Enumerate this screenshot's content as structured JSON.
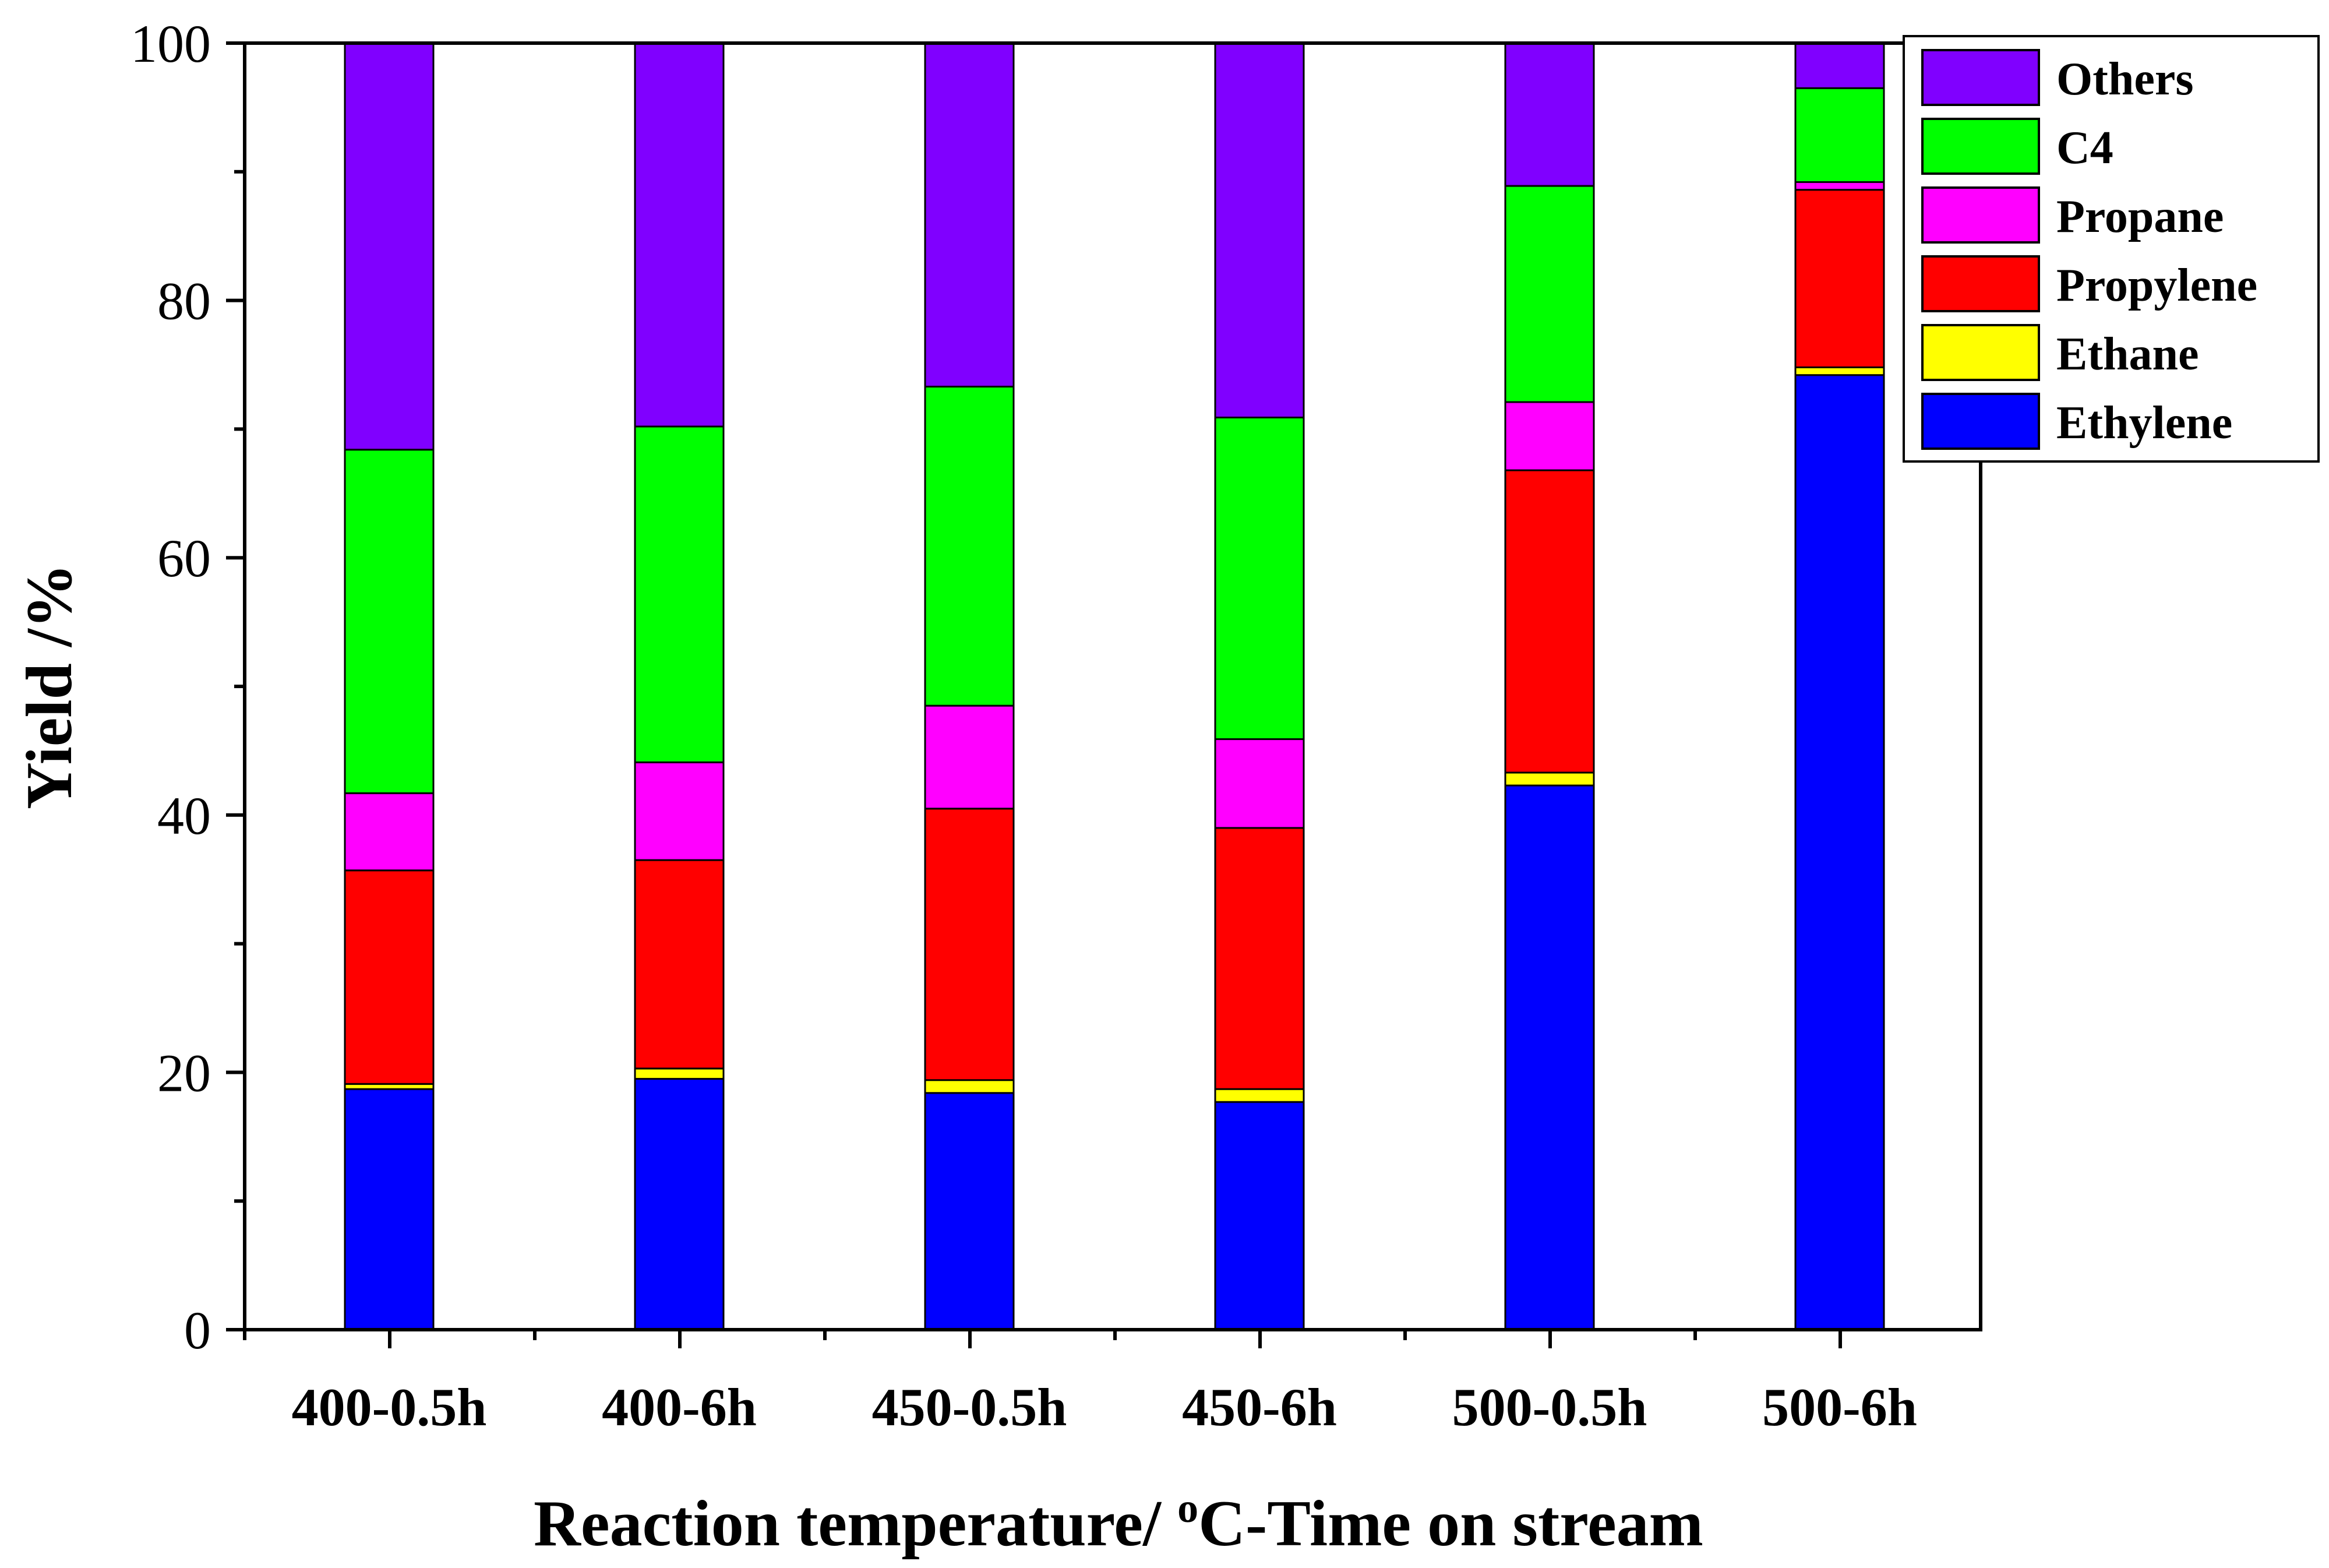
{
  "chart_data": {
    "type": "bar",
    "stacked": true,
    "categories": [
      "400-0.5h",
      "400-6h",
      "450-0.5h",
      "450-6h",
      "500-0.5h",
      "500-6h"
    ],
    "series": [
      {
        "name": "Ethylene",
        "color": "#0000ff",
        "values": [
          18.7,
          19.5,
          18.4,
          17.7,
          42.3,
          74.2
        ]
      },
      {
        "name": "Ethane",
        "color": "#ffff00",
        "values": [
          0.4,
          0.8,
          1.0,
          1.0,
          1.0,
          0.6
        ]
      },
      {
        "name": "Propylene",
        "color": "#ff0000",
        "values": [
          16.6,
          16.2,
          21.1,
          20.3,
          23.5,
          13.8
        ]
      },
      {
        "name": "Propane",
        "color": "#ff00ff",
        "values": [
          6.0,
          7.6,
          8.0,
          6.9,
          5.3,
          0.6
        ]
      },
      {
        "name": "C4",
        "color": "#00ff00",
        "values": [
          26.7,
          26.1,
          24.8,
          25.0,
          16.8,
          7.3
        ]
      },
      {
        "name": "Others",
        "color": "#8000ff",
        "values": [
          31.6,
          29.8,
          26.7,
          29.1,
          11.1,
          3.5
        ]
      }
    ],
    "xlabel_parts": [
      "Reaction temperature/ ",
      "o",
      "C-Time on stream"
    ],
    "ylabel": "Yield /%",
    "ylim": [
      0,
      100
    ],
    "yticks": [
      0,
      20,
      40,
      60,
      80,
      100
    ],
    "ytick_labels": [
      "0",
      "20",
      "40",
      "60",
      "80",
      "100"
    ],
    "legend": {
      "position": "top-right",
      "order": [
        "Others",
        "C4",
        "Propane",
        "Propylene",
        "Ethane",
        "Ethylene"
      ]
    },
    "grid": false
  }
}
